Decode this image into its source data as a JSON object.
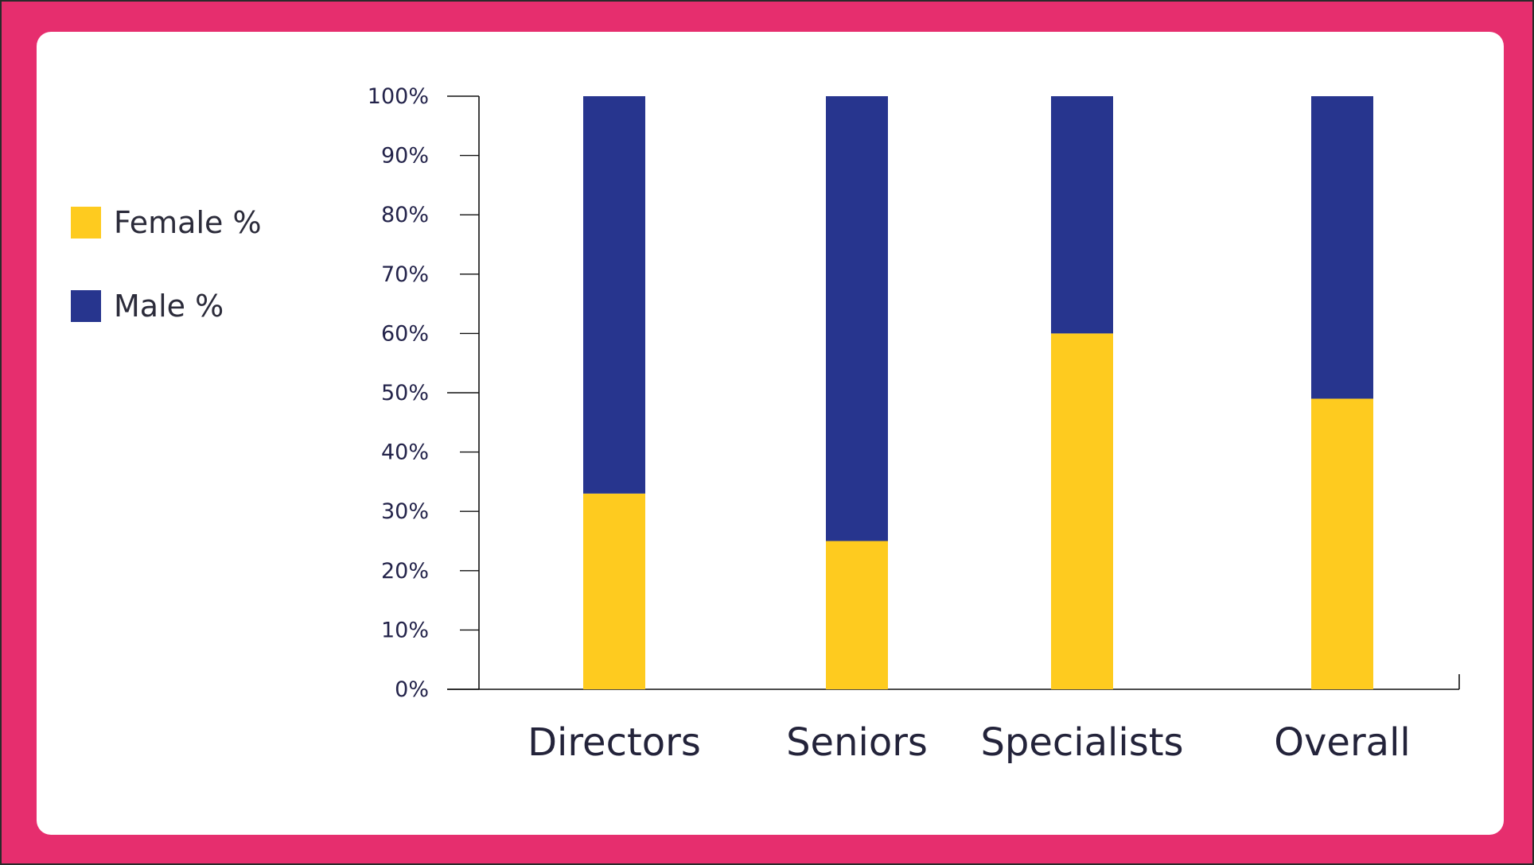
{
  "colors": {
    "frame": "#e62e6e",
    "female": "#fecb1f",
    "male": "#27358e",
    "axis": "#111111"
  },
  "legend": {
    "female_label": "Female %",
    "male_label": "Male %"
  },
  "chart_data": {
    "type": "bar",
    "stacked": true,
    "categories": [
      "Directors",
      "Seniors",
      "Specialists",
      "Overall"
    ],
    "series": [
      {
        "name": "Female %",
        "values": [
          33,
          25,
          60,
          49
        ]
      },
      {
        "name": "Male %",
        "values": [
          67,
          75,
          40,
          51
        ]
      }
    ],
    "yticks": [
      "0%",
      "10%",
      "20%",
      "30%",
      "40%",
      "50%",
      "60%",
      "70%",
      "80%",
      "90%",
      "100%"
    ],
    "ylim": [
      0,
      100
    ],
    "legend_position": "left"
  }
}
